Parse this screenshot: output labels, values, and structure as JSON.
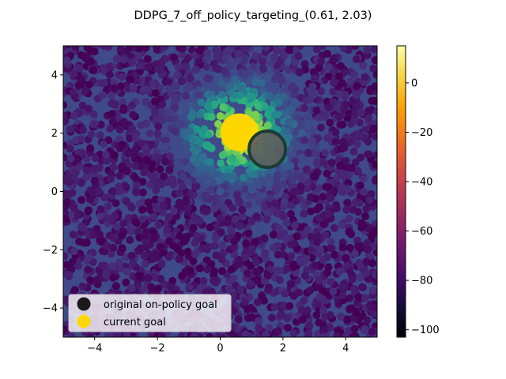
{
  "chart_data": {
    "type": "heatmap",
    "title": "DDPG_7_off_policy_targeting_(0.61, 2.03)",
    "xlabel": "",
    "ylabel": "",
    "xlim": [
      -5,
      5
    ],
    "ylim": [
      -5,
      5
    ],
    "x_ticks": [
      -4,
      -2,
      0,
      2,
      4
    ],
    "y_ticks": [
      -4,
      -2,
      0,
      2,
      4
    ],
    "x_tick_labels": [
      "−4",
      "−2",
      "0",
      "2",
      "4"
    ],
    "y_tick_labels": [
      "−4",
      "−2",
      "0",
      "2",
      "4"
    ],
    "grid": false,
    "colorbar": {
      "colormap": "inferno",
      "range": [
        -103,
        15
      ],
      "ticks": [
        0,
        -20,
        -40,
        -60,
        -80,
        -100
      ],
      "tick_labels": [
        "0",
        "−20",
        "−40",
        "−60",
        "−80",
        "−100"
      ]
    },
    "heatmap": {
      "colormap": "viridis",
      "peak": [
        0.61,
        2.03
      ],
      "value_at_peak": 15,
      "background_value": -80
    },
    "markers": [
      {
        "name": "original on-policy goal",
        "x": 1.5,
        "y": 1.45,
        "color": "#1a1a1a"
      },
      {
        "name": "current goal",
        "x": 0.61,
        "y": 2.03,
        "color": "#FFD700"
      }
    ],
    "legend": {
      "position": "lower-left",
      "entries": [
        {
          "label": "original on-policy goal",
          "color": "#1a1a1a"
        },
        {
          "label": "current goal",
          "color": "#FFD700"
        }
      ]
    }
  }
}
